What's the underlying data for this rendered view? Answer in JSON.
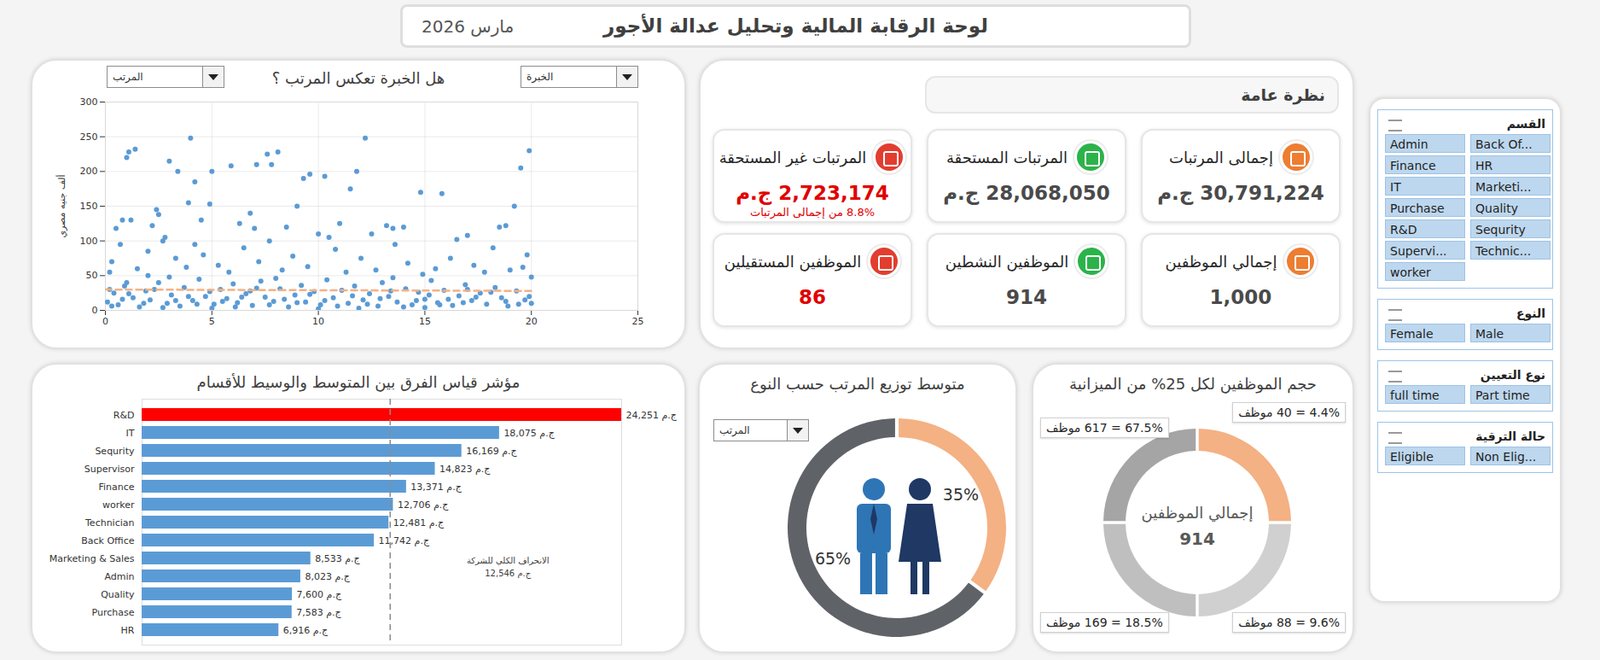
{
  "header": {
    "title": "لوحة الرقابة المالية وتحليل عدالة الأجور",
    "date": "مارس 2026"
  },
  "overview": {
    "title": "نظرة عامة",
    "cards": [
      {
        "label": "إجمالى المرتبات",
        "value": "30,791,224 ج.م"
      },
      {
        "label": "المرتبات المستحقة",
        "value": "28,068,050 ج.م"
      },
      {
        "label": "المرتبات غير المستحقة",
        "value": "2,723,174 ج.م",
        "subtitle": "8.8% من إجمالى المرتبات",
        "color": "#e00000"
      },
      {
        "label": "إجمالي الموظفين",
        "value": "1,000"
      },
      {
        "label": "الموظفين النشطين",
        "value": "914"
      },
      {
        "label": "الموظفين المستقيلين",
        "value": "86",
        "color": "#e00000"
      }
    ]
  },
  "slicers": [
    {
      "title": "القسم",
      "items": [
        "Admin",
        "Back Of...",
        "Finance",
        "HR",
        "IT",
        "Marketi...",
        "Purchase",
        "Quality",
        "R&D",
        "Sequrity",
        "Supervi...",
        "Technic...",
        "worker"
      ]
    },
    {
      "title": "النوع",
      "items": [
        "Female",
        "Male"
      ]
    },
    {
      "title": "نوع التعيين",
      "items": [
        "full time",
        "Part time"
      ]
    },
    {
      "title": "حالة الترقية",
      "items": [
        "Eligible",
        "Non Elig..."
      ]
    }
  ],
  "chart_data": [
    {
      "type": "scatter",
      "title": "هل الخبرة تعكس المرتب ؟",
      "dropdowns": [
        "المرتب",
        "الخبرة"
      ],
      "y_label": "ألف جنيه مصري",
      "x": [
        1.0,
        1.1,
        1.4,
        0.5,
        0.8,
        1.2,
        2.2,
        2.4,
        2.5,
        2.8,
        3.0,
        3.4,
        3.9,
        4.0,
        4.2,
        4.5,
        4.9,
        5.0,
        5.9,
        6.3,
        6.8,
        7.0,
        7.1,
        7.6,
        7.8,
        8.1,
        8.5,
        9.0,
        9.3,
        9.6,
        10.0,
        10.3,
        10.5,
        11.0,
        11.5,
        11.8,
        12.2,
        12.5,
        13.2,
        13.5,
        14.0,
        14.8,
        15.8,
        16.5,
        17.0,
        18.5,
        18.8,
        19.2,
        19.5,
        19.9,
        19.8,
        20.0,
        0.2,
        0.3,
        0.7,
        1.5,
        2.0,
        2.7,
        3.3,
        3.8,
        4.2,
        4.6,
        5.3,
        5.8,
        6.5,
        7.2,
        7.7,
        8.3,
        8.8,
        9.5,
        10.8,
        11.3,
        12.0,
        12.7,
        13.6,
        14.2,
        14.9,
        15.5,
        16.2,
        17.3,
        17.8,
        18.2,
        19.0,
        19.6,
        0.1,
        0.4,
        0.6,
        0.9,
        1.3,
        1.6,
        1.9,
        2.1,
        2.5,
        2.9,
        3.1,
        3.5,
        3.7,
        4.1,
        4.4,
        4.7,
        5.1,
        5.4,
        5.7,
        6.0,
        6.2,
        6.6,
        6.9,
        7.3,
        7.5,
        7.9,
        8.2,
        8.6,
        8.9,
        9.2,
        9.4,
        9.8,
        10.1,
        10.4,
        10.7,
        11.1,
        11.4,
        11.7,
        12.1,
        12.4,
        12.8,
        13.0,
        13.3,
        13.7,
        14.1,
        14.4,
        14.7,
        15.0,
        15.3,
        15.6,
        15.9,
        16.3,
        16.6,
        16.9,
        17.2,
        17.6,
        17.9,
        18.3,
        18.6,
        18.9,
        19.3,
        19.7,
        20.0,
        0.2,
        5.0,
        10.0,
        15.0,
        3.0,
        8.0,
        13.5,
        0.3,
        0.8,
        1.1,
        1.8,
        2.3,
        2.7,
        3.3,
        3.9,
        4.3,
        4.9,
        5.5,
        6.1,
        6.4,
        7.1,
        7.7,
        8.4,
        9.0,
        9.6,
        10.3,
        10.9,
        11.6,
        12.3,
        12.9,
        13.4,
        14.0,
        14.6,
        15.2,
        15.7,
        16.1,
        16.8,
        17.4,
        18.1,
        18.8,
        19.4,
        19.9,
        1.0,
        6.8,
        11.9,
        17.0,
        2.0
      ],
      "values": [
        220,
        228,
        232,
        118,
        130,
        130,
        122,
        145,
        138,
        105,
        215,
        200,
        155,
        248,
        185,
        130,
        153,
        200,
        208,
        125,
        140,
        118,
        210,
        225,
        210,
        228,
        120,
        150,
        190,
        196,
        110,
        193,
        105,
        125,
        175,
        200,
        248,
        110,
        122,
        118,
        120,
        170,
        168,
        102,
        108,
        120,
        122,
        150,
        205,
        230,
        80,
        48,
        55,
        70,
        95,
        60,
        85,
        100,
        75,
        62,
        95,
        80,
        65,
        55,
        90,
        70,
        100,
        58,
        78,
        63,
        88,
        55,
        75,
        58,
        95,
        68,
        52,
        60,
        75,
        65,
        55,
        90,
        58,
        62,
        12,
        25,
        8,
        35,
        18,
        5,
        28,
        15,
        40,
        10,
        22,
        6,
        33,
        14,
        45,
        20,
        9,
        30,
        17,
        38,
        11,
        24,
        7,
        42,
        19,
        13,
        31,
        5,
        22,
        36,
        12,
        27,
        8,
        44,
        18,
        29,
        10,
        35,
        15,
        24,
        6,
        40,
        20,
        12,
        31,
        8,
        26,
        16,
        43,
        11,
        29,
        7,
        21,
        37,
        14,
        25,
        9,
        33,
        18,
        6,
        28,
        15,
        10,
        30,
        3,
        2,
        4,
        48,
        46,
        47,
        6,
        16,
        24,
        10,
        30,
        4,
        14,
        20,
        9,
        27,
        13,
        5,
        19,
        32,
        8,
        16,
        11,
        23,
        14,
        6,
        21,
        9,
        17,
        28,
        5,
        14,
        22,
        8,
        16,
        11,
        19,
        26,
        13,
        9,
        20,
        40,
        28,
        3,
        30,
        50
      ],
      "color": "#5b9bd5",
      "trend_line": {
        "x": [
          0,
          20
        ],
        "values": [
          30,
          28
        ],
        "color": "#f4b183",
        "line_style": "dashed"
      },
      "xlim": [
        0,
        25
      ],
      "xticks": [
        0,
        5,
        10,
        15,
        20,
        25
      ],
      "ylim": [
        0,
        300
      ],
      "yticks": [
        0,
        50,
        100,
        150,
        200,
        250,
        300
      ],
      "grid": true
    },
    {
      "type": "bar",
      "orientation": "horizontal",
      "title": "مؤشر قياس الفرق بين المتوسط والوسيط للأقسام",
      "categories": [
        "R&D",
        "IT",
        "Sequrity",
        "Supervisor",
        "Finance",
        "worker",
        "Technician",
        "Back Office",
        "Marketing & Sales",
        "Admin",
        "Quality",
        "Purchase",
        "HR"
      ],
      "values": [
        24251,
        18075,
        16169,
        14823,
        13371,
        12706,
        12481,
        11742,
        8533,
        8023,
        7600,
        7583,
        6916
      ],
      "value_labels": [
        "ج.م 24,251",
        "ج.م 18,075",
        "ج.م 16,169",
        "ج.م 14,823",
        "ج.م 13,371",
        "ج.م 12,706",
        "ج.م 12,481",
        "ج.م 11,742",
        "ج.م 8,533",
        "ج.م 8,023",
        "ج.م 7,600",
        "ج.م 7,583",
        "ج.م 6,916"
      ],
      "colors": [
        "#ff0000",
        "#5b9bd5",
        "#5b9bd5",
        "#5b9bd5",
        "#5b9bd5",
        "#5b9bd5",
        "#5b9bd5",
        "#5b9bd5",
        "#5b9bd5",
        "#5b9bd5",
        "#5b9bd5",
        "#5b9bd5",
        "#5b9bd5"
      ],
      "data_labels": true,
      "tick_labels": "y",
      "xlim": [
        0,
        24251
      ],
      "reference_line": {
        "value": 12546,
        "label": "الانحراف الكلي للشركة",
        "value_label": "ج.م 12,546",
        "line_style": "dashed"
      }
    },
    {
      "type": "pie",
      "title": "متوسط توزيع المرتب حسب النوع",
      "dropdown": "المرتب",
      "values": [
        35,
        65
      ],
      "value_labels": [
        "35%",
        "65%"
      ],
      "colors": [
        "#f4b183",
        "#5f6368"
      ],
      "data_labels": true
    },
    {
      "type": "pie",
      "title": "حجم الموظفين لكل 25% من الميزانية",
      "budget_share": [
        25,
        25,
        25,
        25
      ],
      "labels": [
        "4.4% = 40 موظف",
        "9.6% = 88 موظف",
        "18.5% = 169 موظف",
        "67.5% = 617 موظف"
      ],
      "colors": [
        "#f4b183",
        "#d0d0d0",
        "#bfbfbf",
        "#a5a5a5"
      ],
      "center_label": "إجمالي الموظفين",
      "center_value": 914
    }
  ]
}
